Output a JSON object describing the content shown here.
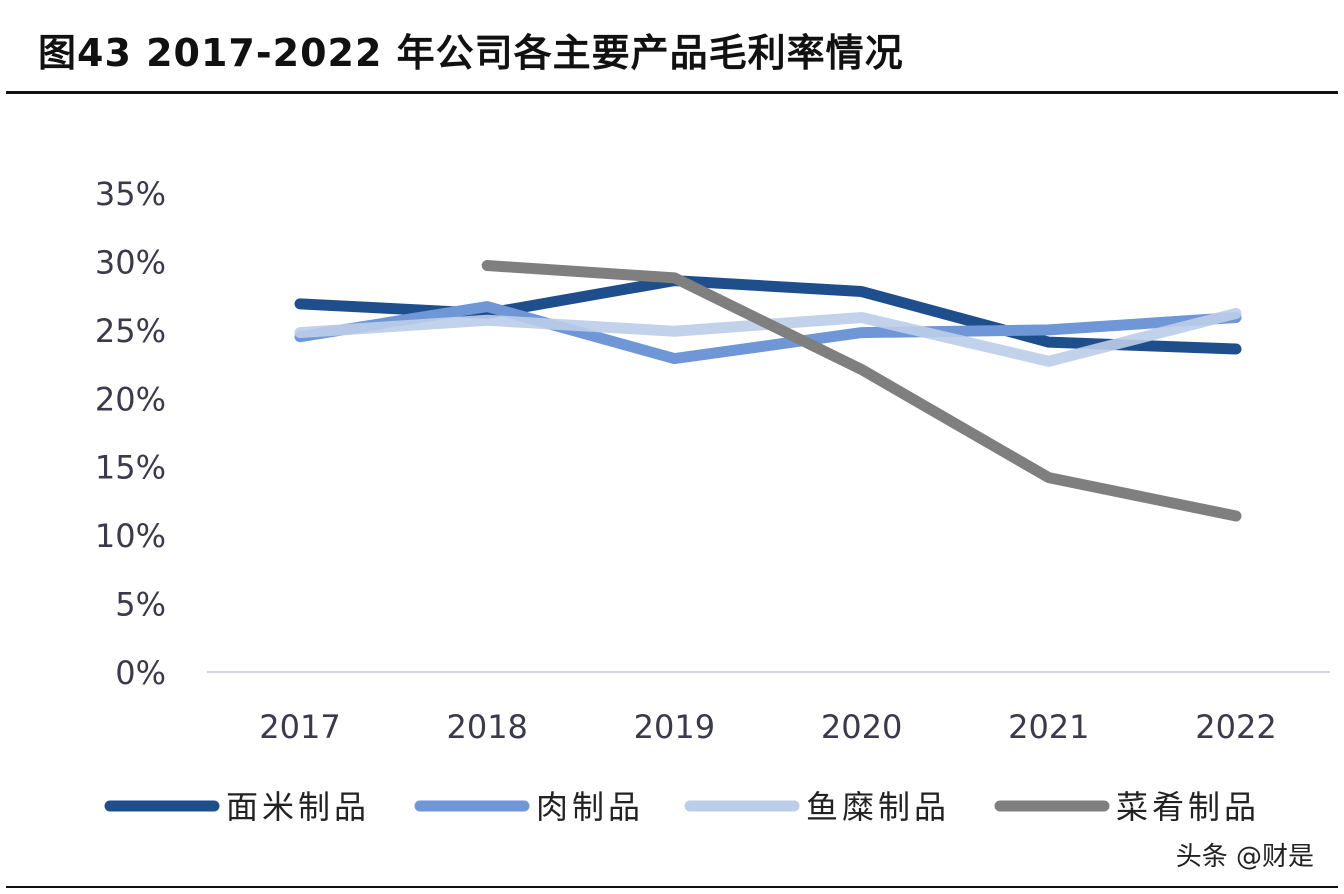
{
  "title": "图43 2017-2022 年公司各主要产品毛利率情况",
  "watermark": "头条 @财是",
  "chart_data": {
    "type": "line",
    "categories": [
      "2017",
      "2018",
      "2019",
      "2020",
      "2021",
      "2022"
    ],
    "ylim": [
      0,
      35
    ],
    "yticks": [
      "0%",
      "5%",
      "10%",
      "15%",
      "20%",
      "25%",
      "30%",
      "35%"
    ],
    "grid": false,
    "legend": "bottom",
    "series": [
      {
        "name": "面米制品",
        "color": "#1f4e8c",
        "values": [
          26.9,
          26.2,
          28.6,
          27.8,
          24.1,
          23.6
        ]
      },
      {
        "name": "肉制品",
        "color": "#6f96d6",
        "values": [
          24.5,
          26.7,
          22.9,
          24.8,
          25.0,
          25.9
        ]
      },
      {
        "name": "鱼糜制品",
        "color": "#bccde9",
        "values": [
          24.8,
          25.7,
          24.9,
          25.9,
          22.7,
          26.2
        ]
      },
      {
        "name": "菜肴制品",
        "color": "#7f7f7f",
        "values": [
          null,
          29.7,
          28.8,
          22.1,
          14.2,
          11.4
        ]
      }
    ]
  }
}
